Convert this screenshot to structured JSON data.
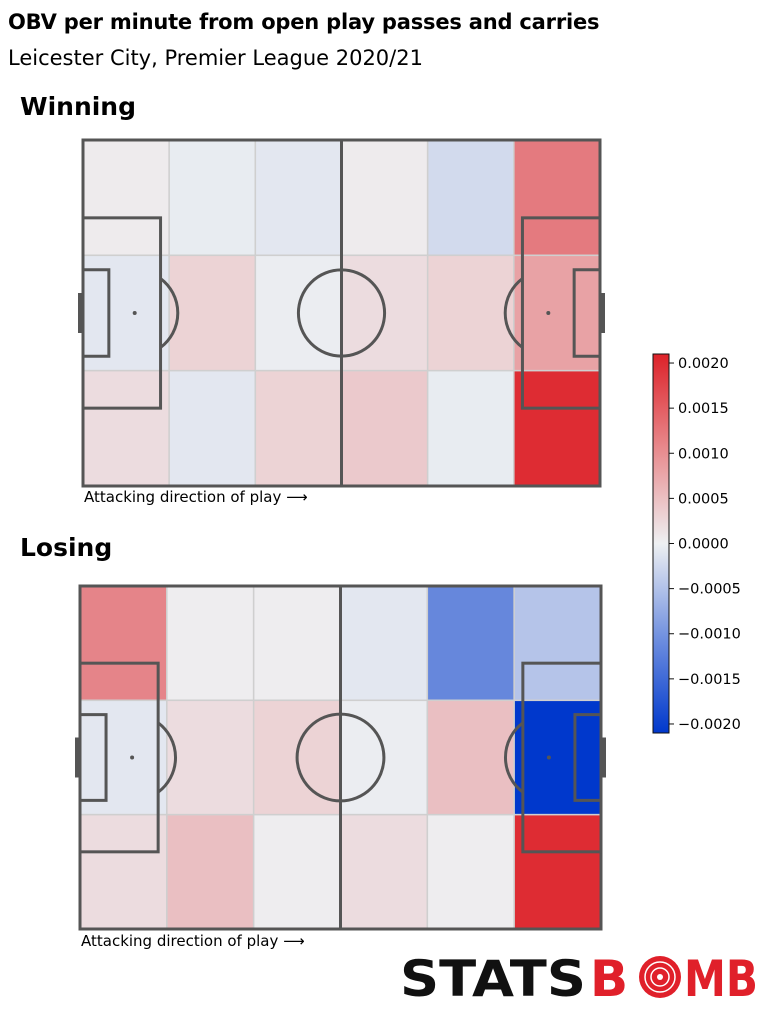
{
  "title": "OBV per minute from open play passes and carries",
  "subtitle": "Leicester City, Premier League 2020/21",
  "direction_label": "Attacking direction of play ⟶",
  "logo": {
    "text_left": "STATS",
    "text_right": "B◉MB",
    "word": "STATSBOMB",
    "color_dark": "#111111",
    "color_red": "#e0202a"
  },
  "colors": {
    "min": "#0038cc",
    "mid": "#eef0f2",
    "max": "#dd2229",
    "pitch_lines": "#555555",
    "grid_lines": "#cfcfcf"
  },
  "chart_data": [
    {
      "type": "heatmap",
      "panel_title": "Winning",
      "grid": "6 columns x 3 rows (columns left to right along attacking direction; rows top to bottom)",
      "values": [
        [
          5e-05,
          -5e-05,
          -0.0001,
          5e-05,
          -0.00025,
          0.0012
        ],
        [
          -0.0001,
          0.0003,
          -3e-05,
          0.0002,
          0.0003,
          0.0008
        ],
        [
          0.0002,
          -0.0001,
          0.0003,
          0.0004,
          -5e-05,
          0.002
        ]
      ]
    },
    {
      "type": "heatmap",
      "panel_title": "Losing",
      "grid": "6 columns x 3 rows (columns left to right along attacking direction; rows top to bottom)",
      "values": [
        [
          0.0011,
          3e-05,
          3e-05,
          -0.0001,
          -0.0012,
          -0.0005
        ],
        [
          -0.0001,
          0.0002,
          0.0003,
          -3e-05,
          0.0005,
          -0.0021
        ],
        [
          0.0002,
          0.0005,
          3e-05,
          0.0002,
          3e-05,
          0.002
        ]
      ]
    }
  ],
  "colorbar": {
    "vmin": -0.0021,
    "vmax": 0.0021,
    "ticks": [
      {
        "value": 0.002,
        "label": "0.0020"
      },
      {
        "value": 0.0015,
        "label": "0.0015"
      },
      {
        "value": 0.001,
        "label": "0.0010"
      },
      {
        "value": 0.0005,
        "label": "0.0005"
      },
      {
        "value": 0.0,
        "label": "0.0000"
      },
      {
        "value": -0.0005,
        "label": "−0.0005"
      },
      {
        "value": -0.001,
        "label": "−0.0010"
      },
      {
        "value": -0.0015,
        "label": "−0.0015"
      },
      {
        "value": -0.002,
        "label": "−0.0020"
      }
    ]
  }
}
